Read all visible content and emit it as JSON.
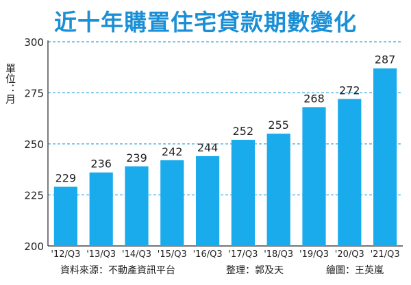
{
  "chart_data": {
    "type": "bar",
    "title": "近十年購置住宅貸款期數變化",
    "ylabel": "單位：月",
    "categories": [
      "'12/Q3",
      "'13/Q3",
      "'14/Q3",
      "'15/Q3",
      "'16/Q3",
      "'17/Q3",
      "'18/Q3",
      "'19/Q3",
      "'20/Q3",
      "'21/Q3"
    ],
    "values": [
      229,
      236,
      239,
      242,
      244,
      252,
      255,
      268,
      272,
      287
    ],
    "ylim": [
      200,
      300
    ],
    "yticks": [
      200,
      225,
      250,
      275,
      300
    ],
    "grid": true,
    "bar_color": "#1aabec",
    "grid_color": "#33a9e0"
  },
  "footer": {
    "source": "資料來源：不動產資訊平台",
    "editor": "整理：郭及天",
    "artist": "繪圖：王英嵐"
  }
}
